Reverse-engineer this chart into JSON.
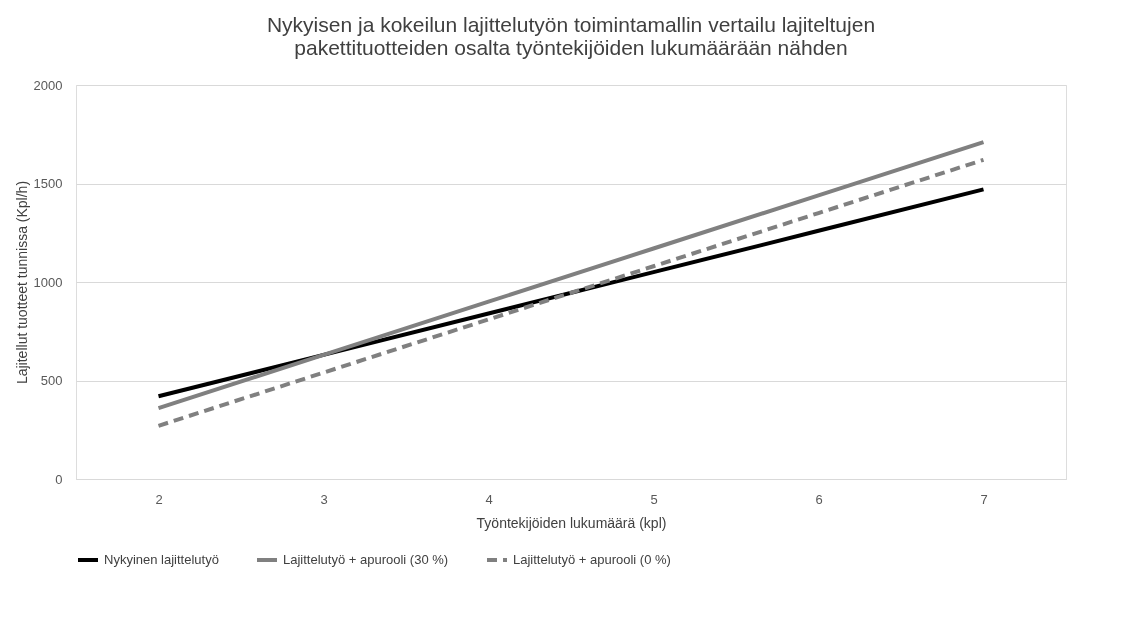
{
  "chart_data": {
    "type": "line",
    "title": [
      "Nykyisen ja kokeilun lajittelutyön toimintamallin vertailu lajiteltujen",
      "pakettituotteiden osalta työntekijöiden lukumäärään nähden"
    ],
    "xlabel": "Työntekijöiden lukumäärä (kpl)",
    "ylabel": "Lajitellut tuotteet tunnissa (Kpl/h)",
    "categories": [
      "2",
      "3",
      "4",
      "5",
      "6",
      "7"
    ],
    "series": [
      {
        "name": "Nykyinen lajittelutyö",
        "color": "#000000",
        "line_style": "solid",
        "values": [
          420,
          630,
          840,
          1050,
          1260,
          1470
        ]
      },
      {
        "name": "Lajittelutyö + apurooli (30 %)",
        "color": "#808080",
        "line_style": "solid",
        "values": [
          360,
          630,
          900,
          1170,
          1440,
          1710
        ]
      },
      {
        "name": "Lajittelutyö + apurooli (0 %)",
        "color": "#808080",
        "line_style": "dashed",
        "values": [
          270,
          540,
          810,
          1080,
          1350,
          1620
        ]
      }
    ],
    "ylim": [
      0,
      2000
    ],
    "yticks": [
      0,
      500,
      1000,
      1500,
      2000
    ],
    "grid": "y",
    "legend": "bottom",
    "marker": "none"
  }
}
